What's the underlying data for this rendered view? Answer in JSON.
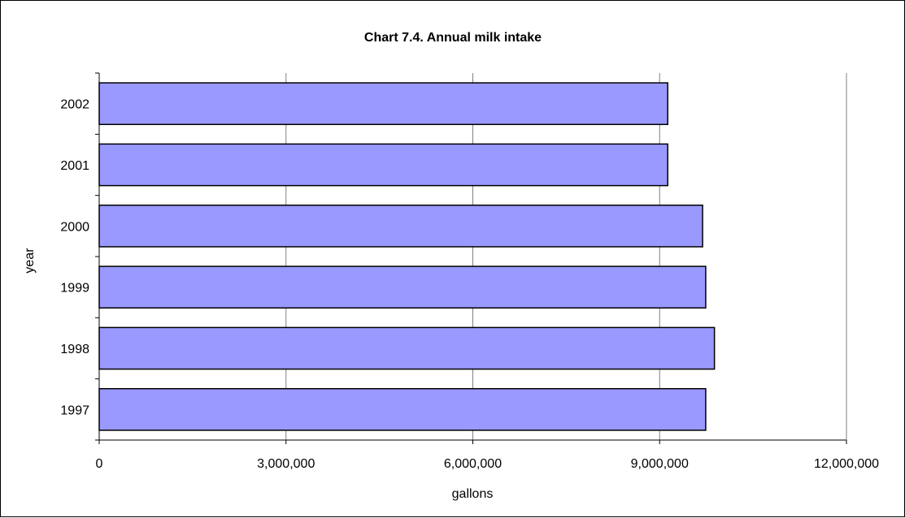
{
  "colors": {
    "bar_fill": "#9999ff",
    "bar_stroke": "#000000",
    "gridline": "#808080",
    "axis": "#000000",
    "background": "#ffffff"
  },
  "chart_data": {
    "type": "bar",
    "orientation": "horizontal",
    "title": "Chart 7.4.  Annual milk intake",
    "xlabel": "gallons",
    "ylabel": "year",
    "categories": [
      "2002",
      "2001",
      "2000",
      "1999",
      "1998",
      "1997"
    ],
    "values": [
      9130000,
      9130000,
      9690000,
      9740000,
      9880000,
      9740000
    ],
    "xlim": [
      0,
      12000000
    ],
    "xticks": [
      0,
      3000000,
      6000000,
      9000000,
      12000000
    ],
    "xtick_labels": [
      "0",
      "3,000,000",
      "6,000,000",
      "9,000,000",
      "12,000,000"
    ],
    "grid": "vertical major gridlines",
    "legend": "none"
  }
}
